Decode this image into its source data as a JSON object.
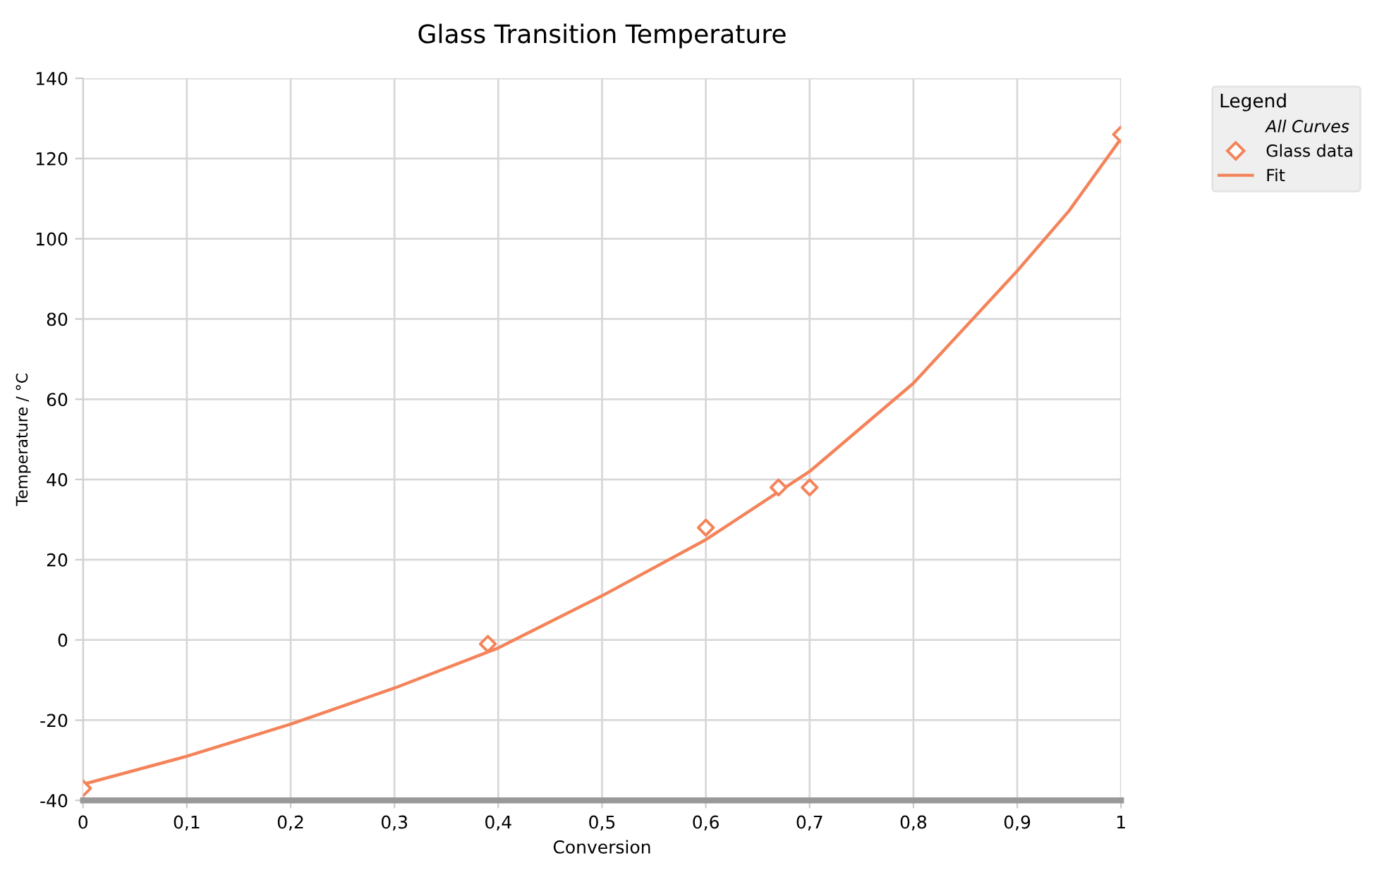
{
  "chart_data": {
    "type": "scatter",
    "title": "Glass Transition Temperature",
    "xlabel": "Conversion",
    "ylabel": "Temperature / °C",
    "legend_title": "Legend",
    "annotations": [
      "All Curves"
    ],
    "series": [
      {
        "name": "Glass data",
        "marker": "diamond",
        "color": "#f4835a",
        "x": [
          0,
          0.39,
          0.6,
          0.67,
          0.7,
          1
        ],
        "values": [
          -37,
          -1,
          28,
          38,
          38,
          126
        ]
      },
      {
        "name": "Fit",
        "type": "line",
        "marker": "none",
        "line_style": "solid",
        "color": "#f4835a",
        "x": [
          0,
          0.1,
          0.2,
          0.3,
          0.4,
          0.5,
          0.6,
          0.7,
          0.8,
          0.9,
          0.95,
          1
        ],
        "values": [
          -36,
          -29,
          -21,
          -12,
          -2,
          11,
          25,
          42,
          64,
          92,
          107,
          125
        ]
      }
    ],
    "xlim": [
      0,
      1
    ],
    "ylim": [
      -40,
      140
    ],
    "xticks": [
      0,
      {
        "value": 0.1,
        "label": "0,1"
      },
      {
        "value": 0.2,
        "label": "0,2"
      },
      {
        "value": 0.3,
        "label": "0,3"
      },
      {
        "value": 0.4,
        "label": "0,4"
      },
      {
        "value": 0.5,
        "label": "0,5"
      },
      {
        "value": 0.6,
        "label": "0,6"
      },
      {
        "value": 0.7,
        "label": "0,7"
      },
      {
        "value": 0.8,
        "label": "0,8"
      },
      {
        "value": 0.9,
        "label": "0,9"
      },
      1
    ],
    "yticks": [
      -40,
      -20,
      0,
      20,
      40,
      60,
      80,
      100,
      120,
      140
    ],
    "grid": true,
    "legend": "top right"
  }
}
